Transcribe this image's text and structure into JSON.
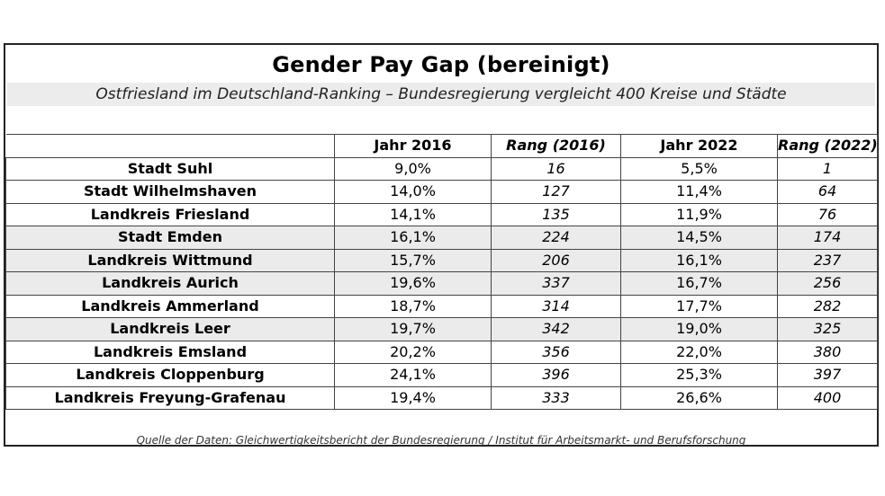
{
  "chart_data": {
    "type": "table",
    "title": "Gender Pay Gap (bereinigt)",
    "subtitle": "Ostfriesland im Deutschland-Ranking – Bundesregierung vergleicht 400 Kreise und Städte",
    "columns": [
      "",
      "Jahr 2016",
      "Rang (2016)",
      "Jahr 2022",
      "Rang (2022)"
    ],
    "rows": [
      {
        "name": "Stadt Suhl",
        "jahr2016": "9,0%",
        "rang2016": "16",
        "jahr2022": "5,5%",
        "rang2022": "1"
      },
      {
        "name": "Stadt Wilhelmshaven",
        "jahr2016": "14,0%",
        "rang2016": "127",
        "jahr2022": "11,4%",
        "rang2022": "64"
      },
      {
        "name": "Landkreis Friesland",
        "jahr2016": "14,1%",
        "rang2016": "135",
        "jahr2022": "11,9%",
        "rang2022": "76"
      },
      {
        "name": "Stadt Emden",
        "jahr2016": "16,1%",
        "rang2016": "224",
        "jahr2022": "14,5%",
        "rang2022": "174"
      },
      {
        "name": "Landkreis Wittmund",
        "jahr2016": "15,7%",
        "rang2016": "206",
        "jahr2022": "16,1%",
        "rang2022": "237"
      },
      {
        "name": "Landkreis Aurich",
        "jahr2016": "19,6%",
        "rang2016": "337",
        "jahr2022": "16,7%",
        "rang2022": "256"
      },
      {
        "name": "Landkreis Ammerland",
        "jahr2016": "18,7%",
        "rang2016": "314",
        "jahr2022": "17,7%",
        "rang2022": "282"
      },
      {
        "name": "Landkreis Leer",
        "jahr2016": "19,7%",
        "rang2016": "342",
        "jahr2022": "19,0%",
        "rang2022": "325"
      },
      {
        "name": "Landkreis Emsland",
        "jahr2016": "20,2%",
        "rang2016": "356",
        "jahr2022": "22,0%",
        "rang2022": "380"
      },
      {
        "name": "Landkreis Cloppenburg",
        "jahr2016": "24,1%",
        "rang2016": "396",
        "jahr2022": "25,3%",
        "rang2022": "397"
      },
      {
        "name": "Landkreis Freyung-Grafenau",
        "jahr2016": "19,4%",
        "rang2016": "333",
        "jahr2022": "26,6%",
        "rang2022": "400"
      }
    ],
    "highlighted_rows": [
      "Stadt Emden",
      "Landkreis Wittmund",
      "Landkreis Aurich",
      "Landkreis Leer"
    ],
    "highlight_color": "#ebebeb",
    "source": "Quelle der Daten: Gleichwertigkeitsbericht der Bundesregierung / Institut für Arbeitsmarkt- und Berufsforschung"
  }
}
